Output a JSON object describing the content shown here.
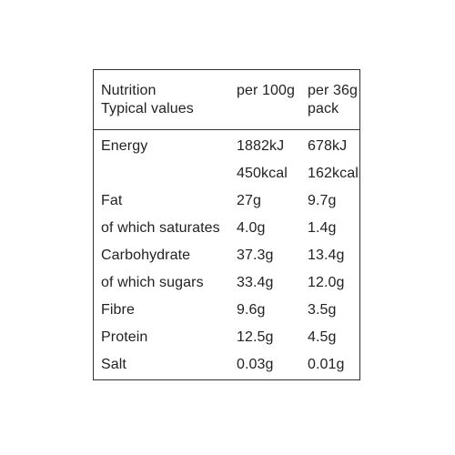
{
  "table": {
    "header": {
      "title_line1": "Nutrition",
      "title_line2": "Typical values",
      "col1_label": "per 100g",
      "col2_label_line1": "per 36g",
      "col2_label_line2": "pack"
    },
    "rows": [
      {
        "label": "Energy",
        "per100": "1882kJ",
        "perpack": "678kJ"
      },
      {
        "label": "",
        "per100": "450kcal",
        "perpack": "162kcal"
      },
      {
        "label": "Fat",
        "per100": "27g",
        "perpack": "9.7g"
      },
      {
        "label": "of which saturates",
        "per100": "4.0g",
        "perpack": "1.4g"
      },
      {
        "label": "Carbohydrate",
        "per100": "37.3g",
        "perpack": "13.4g"
      },
      {
        "label": "of which sugars",
        "per100": "33.4g",
        "perpack": "12.0g"
      },
      {
        "label": "Fibre",
        "per100": "9.6g",
        "perpack": "3.5g"
      },
      {
        "label": "Protein",
        "per100": "12.5g",
        "perpack": "4.5g"
      },
      {
        "label": "Salt",
        "per100": "0.03g",
        "perpack": "0.01g"
      }
    ]
  }
}
